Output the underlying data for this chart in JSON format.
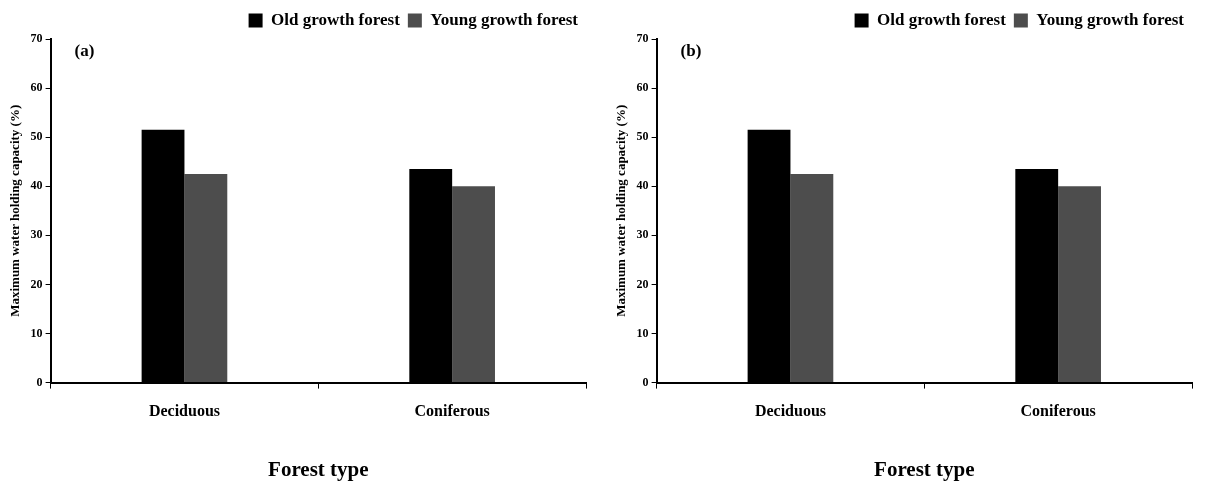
{
  "chart_data": [
    {
      "type": "bar",
      "annotations": [
        "(a)"
      ],
      "xlabel": "Forest type",
      "ylabel": "Maximum water holding capacity (%)",
      "categories": [
        "Deciduous",
        "Coniferous"
      ],
      "series": [
        {
          "name": "Old growth forest",
          "color": "#000000",
          "values": [
            51.5,
            43.5
          ]
        },
        {
          "name": "Young growth forest",
          "color": "#4d4d4d",
          "values": [
            42.5,
            40
          ]
        }
      ],
      "ylim": [
        0,
        70
      ],
      "yticks": [
        0,
        10,
        20,
        30,
        40,
        50,
        60,
        70
      ],
      "legend": "top right"
    },
    {
      "type": "bar",
      "annotations": [
        "(b)"
      ],
      "xlabel": "Forest type",
      "ylabel": "Maximum water holding capacity (%)",
      "categories": [
        "Deciduous",
        "Coniferous"
      ],
      "series": [
        {
          "name": "Old growth forest",
          "color": "#000000",
          "values": [
            51.5,
            43.5
          ]
        },
        {
          "name": "Young growth forest",
          "color": "#4d4d4d",
          "values": [
            42.5,
            40
          ]
        }
      ],
      "ylim": [
        0,
        70
      ],
      "yticks": [
        0,
        10,
        20,
        30,
        40,
        50,
        60,
        70
      ],
      "legend": "top right"
    }
  ]
}
